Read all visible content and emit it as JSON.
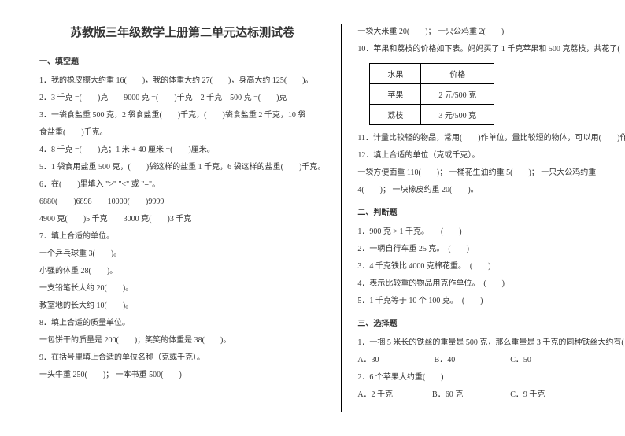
{
  "title": "苏教版三年级数学上册第二单元达标测试卷",
  "left": {
    "h1": "一、填空题",
    "l1": "1．我的橡皮擦大约重 16(　　)，我的体重大约 27(　　)，身高大约 125(　　)。",
    "l2": "2．3 千克 =(　　)克　　9000 克 =(　　)千克　2 千克—500 克 =(　　)克",
    "l3": "3．一袋食盐重 500 克，2 袋食盐重(　　)千克，(　　)袋食盐重 2 千克，10 袋",
    "l3b": "食盐重(　　)千克。",
    "l4": "4．8 千克 =(　　)克；1 米 + 40 厘米 =(　　)厘米。",
    "l5": "5．1 袋食用盐重 500 克，(　　)袋这样的盐重 1 千克，6 袋这样的盐重(　　)千克。",
    "l6": "6．在(　　)里填入 \">\" \"<\" 或 \"=\"。",
    "l6a": "6880(　　)6898　　10000(　　)9999",
    "l6b": "4900 克(　　)5 千克　　3000 克(　　)3 千克",
    "l7": "7．填上合适的单位。",
    "l7a": "一个乒乓球重 3(　　)。",
    "l7b": "小强的体重 28(　　)。",
    "l7c": "一支铅笔长大约 20(　　)。",
    "l7d": "教室地的长大约 10(　　)。",
    "l8": "8．填上合适的质量单位。",
    "l8a": "一包饼干的质量是 200(　　)；笑笑的体重是 38(　　)。",
    "l9": "9．在括号里填上合适的单位名称（克或千克）。",
    "l9a": "一头牛重 250(　　)； 一本书重 500(　　)"
  },
  "right": {
    "r1": "一袋大米重 20(　　)； 一只公鸡重 2(　　)",
    "r2": "10．苹果和荔枝的价格如下表。妈妈买了 1 千克苹果和 500 克荔枝，共花了(　　)元。",
    "th1": "水果",
    "th2": "价格",
    "td1": "苹果",
    "td2": "2 元/500 克",
    "td3": "荔枝",
    "td4": "3 元/500 克",
    "r11": "11．计量比较轻的物品，常用(　　)作单位，量比较短的物体，可以用(　　)作单位。",
    "r12": "12．填上合适的单位（克或千克）。",
    "r12a": "一袋方便面重 110(　　)； 一桶花生油约重 5(　　)； 一只大公鸡约重",
    "r12b": "4(　　)； 一块橡皮约重 20(　　)。",
    "h2": "二、判断题",
    "j1": "1．900 克 > 1 千克。　　(　　)",
    "j2": "2．一辆自行车重 25 克。　(　　)",
    "j3": "3．4 千克铁比 4000 克棉花重。　(　　)",
    "j4": "4．表示比较重的物品用克作单位。　(　　)",
    "j5": "5．1 千克等于 10 个 100 克。　(　　)",
    "h3": "三、选择题",
    "s1": "1．一捆 5 米长的铁丝的重量是 500 克，那么重量是 3 千克的同种铁丝大约有(　　)米长。",
    "s1o": "A．30　　　　　　　B．40　　　　　　　C．50",
    "s2": "2．6 个苹果大约重(　　)",
    "s2o": "A．2 千克　　　　　B．60 克　　　　　　C．9 千克"
  }
}
